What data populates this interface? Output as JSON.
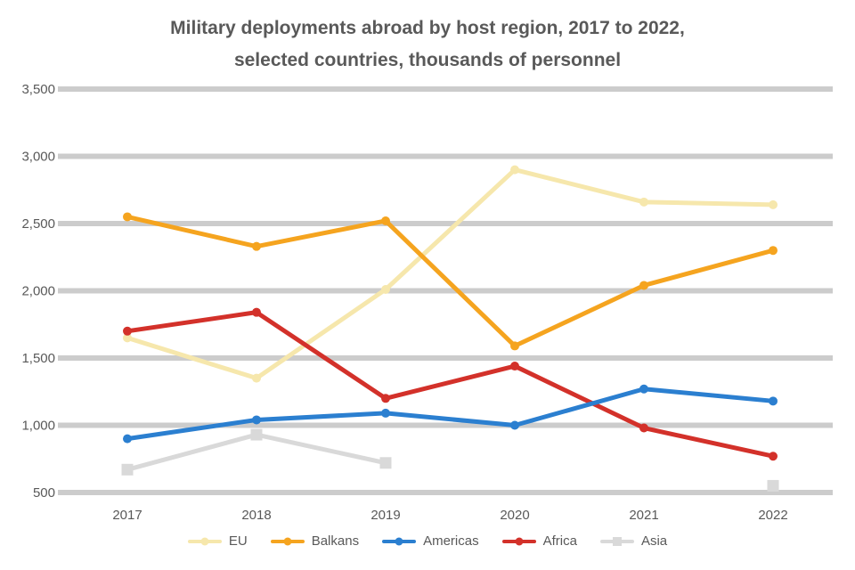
{
  "chart": {
    "title_line1": "Military deployments abroad by host region, 2017 to 2022,",
    "title_line2": "selected countries, thousands of personnel"
  },
  "chart_data": {
    "type": "line",
    "categories": [
      "2017",
      "2018",
      "2019",
      "2020",
      "2021",
      "2022"
    ],
    "series": [
      {
        "name": "EU",
        "color": "#F6E7AC",
        "marker": "circle",
        "values": [
          1650,
          1350,
          2010,
          2900,
          2660,
          2640
        ]
      },
      {
        "name": "Balkans",
        "color": "#F5A41F",
        "marker": "circle",
        "values": [
          2550,
          2330,
          2520,
          1590,
          2040,
          2300
        ]
      },
      {
        "name": "Americas",
        "color": "#2B7FD0",
        "marker": "circle",
        "values": [
          900,
          1040,
          1090,
          1000,
          1270,
          1180
        ]
      },
      {
        "name": "Africa",
        "color": "#D3312A",
        "marker": "circle",
        "values": [
          1700,
          1840,
          1200,
          1440,
          980,
          770
        ]
      },
      {
        "name": "Asia",
        "color": "#D9D9D9",
        "marker": "square",
        "values": [
          670,
          930,
          720,
          null,
          null,
          550
        ]
      }
    ],
    "ylim": [
      500,
      3500
    ],
    "yticklabels_bottom_to_top": [
      "500",
      "1,000",
      "1,500",
      "2,000",
      "2,500",
      "3,000",
      "3,500"
    ],
    "grid": "horizontal",
    "legend_position": "bottom",
    "colors": {
      "text": "#595959",
      "gridline": "#CCCCCC",
      "background": "#FFFFFF"
    }
  }
}
